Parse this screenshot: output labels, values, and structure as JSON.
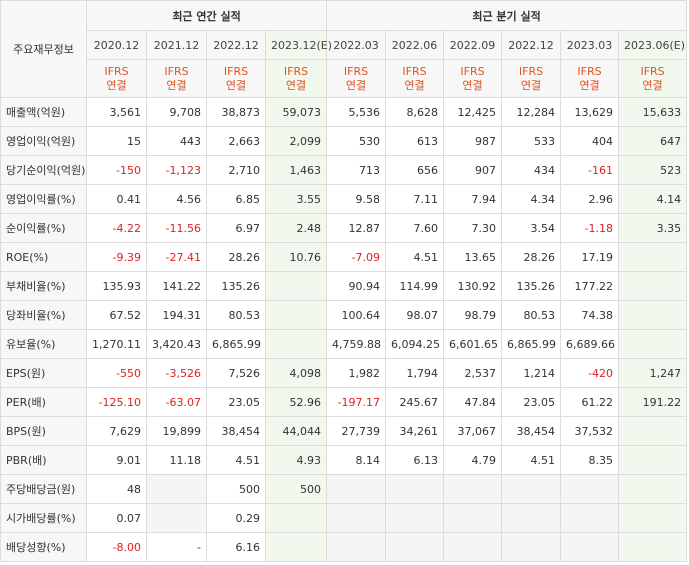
{
  "header": {
    "corner_label": "주요재무정보",
    "group_annual": "최근 연간 실적",
    "group_quarter": "최근 분기 실적",
    "periods": [
      "2020.12",
      "2021.12",
      "2022.12",
      "2023.12(E)",
      "2022.03",
      "2022.06",
      "2022.09",
      "2022.12",
      "2023.03",
      "2023.06(E)"
    ],
    "std_line1": "IFRS",
    "std_line2": "연결"
  },
  "rows": [
    {
      "label": "매출액(억원)",
      "values": [
        "3,561",
        "9,708",
        "38,873",
        "59,073",
        "5,536",
        "8,628",
        "12,425",
        "12,284",
        "13,629",
        "15,633"
      ]
    },
    {
      "label": "영업이익(억원)",
      "values": [
        "15",
        "443",
        "2,663",
        "2,099",
        "530",
        "613",
        "987",
        "533",
        "404",
        "647"
      ]
    },
    {
      "label": "당기순이익(억원)",
      "values": [
        "-150",
        "-1,123",
        "2,710",
        "1,463",
        "713",
        "656",
        "907",
        "434",
        "-161",
        "523"
      ]
    },
    {
      "label": "영업이익률(%)",
      "values": [
        "0.41",
        "4.56",
        "6.85",
        "3.55",
        "9.58",
        "7.11",
        "7.94",
        "4.34",
        "2.96",
        "4.14"
      ]
    },
    {
      "label": "순이익률(%)",
      "values": [
        "-4.22",
        "-11.56",
        "6.97",
        "2.48",
        "12.87",
        "7.60",
        "7.30",
        "3.54",
        "-1.18",
        "3.35"
      ]
    },
    {
      "label": "ROE(%)",
      "values": [
        "-9.39",
        "-27.41",
        "28.26",
        "10.76",
        "-7.09",
        "4.51",
        "13.65",
        "28.26",
        "17.19",
        ""
      ]
    },
    {
      "label": "부채비율(%)",
      "values": [
        "135.93",
        "141.22",
        "135.26",
        "",
        "90.94",
        "114.99",
        "130.92",
        "135.26",
        "177.22",
        ""
      ]
    },
    {
      "label": "당좌비율(%)",
      "values": [
        "67.52",
        "194.31",
        "80.53",
        "",
        "100.64",
        "98.07",
        "98.79",
        "80.53",
        "74.38",
        ""
      ]
    },
    {
      "label": "유보율(%)",
      "values": [
        "1,270.11",
        "3,420.43",
        "6,865.99",
        "",
        "4,759.88",
        "6,094.25",
        "6,601.65",
        "6,865.99",
        "6,689.66",
        ""
      ]
    },
    {
      "label": "EPS(원)",
      "values": [
        "-550",
        "-3,526",
        "7,526",
        "4,098",
        "1,982",
        "1,794",
        "2,537",
        "1,214",
        "-420",
        "1,247"
      ]
    },
    {
      "label": "PER(배)",
      "values": [
        "-125.10",
        "-63.07",
        "23.05",
        "52.96",
        "-197.17",
        "245.67",
        "47.84",
        "23.05",
        "61.22",
        "191.22"
      ]
    },
    {
      "label": "BPS(원)",
      "values": [
        "7,629",
        "19,899",
        "38,454",
        "44,044",
        "27,739",
        "34,261",
        "37,067",
        "38,454",
        "37,532",
        ""
      ]
    },
    {
      "label": "PBR(배)",
      "values": [
        "9.01",
        "11.18",
        "4.51",
        "4.93",
        "8.14",
        "6.13",
        "4.79",
        "4.51",
        "8.35",
        ""
      ]
    },
    {
      "label": "주당배당금(원)",
      "values": [
        "48",
        "",
        "500",
        "500",
        "",
        "",
        "",
        "",
        "",
        ""
      ]
    },
    {
      "label": "시가배당률(%)",
      "values": [
        "0.07",
        "",
        "0.29",
        "",
        "",
        "",
        "",
        "",
        "",
        ""
      ]
    },
    {
      "label": "배당성향(%)",
      "values": [
        "-8.00",
        "-",
        "6.16",
        "",
        "",
        "",
        "",
        "",
        "",
        ""
      ]
    }
  ],
  "colors": {
    "negative": "#e02020",
    "accent": "#e0531e",
    "estimate_bg": "#f1f8ee",
    "empty_bg": "#f5f5f5"
  }
}
